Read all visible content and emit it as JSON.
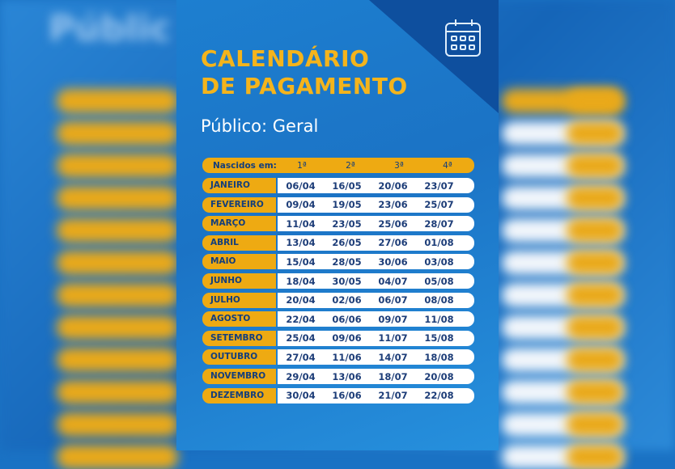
{
  "title_line1": "CALENDÁRIO",
  "title_line2": "DE PAGAMENTO",
  "subtitle": "Público: Geral",
  "background_text": "Públic",
  "header": {
    "label": "Nascidos em:",
    "cols": [
      "1ª",
      "2ª",
      "3ª",
      "4ª"
    ]
  },
  "rows": [
    {
      "month": "JANEIRO",
      "dates": [
        "06/04",
        "16/05",
        "20/06",
        "23/07"
      ]
    },
    {
      "month": "FEVEREIRO",
      "dates": [
        "09/04",
        "19/05",
        "23/06",
        "25/07"
      ]
    },
    {
      "month": "MARÇO",
      "dates": [
        "11/04",
        "23/05",
        "25/06",
        "28/07"
      ]
    },
    {
      "month": "ABRIL",
      "dates": [
        "13/04",
        "26/05",
        "27/06",
        "01/08"
      ]
    },
    {
      "month": "MAIO",
      "dates": [
        "15/04",
        "28/05",
        "30/06",
        "03/08"
      ]
    },
    {
      "month": "JUNHO",
      "dates": [
        "18/04",
        "30/05",
        "04/07",
        "05/08"
      ]
    },
    {
      "month": "JULHO",
      "dates": [
        "20/04",
        "02/06",
        "06/07",
        "08/08"
      ]
    },
    {
      "month": "AGOSTO",
      "dates": [
        "22/04",
        "06/06",
        "09/07",
        "11/08"
      ]
    },
    {
      "month": "SETEMBRO",
      "dates": [
        "25/04",
        "09/06",
        "11/07",
        "15/08"
      ]
    },
    {
      "month": "OUTUBRO",
      "dates": [
        "27/04",
        "11/06",
        "14/07",
        "18/08"
      ]
    },
    {
      "month": "NOVEMBRO",
      "dates": [
        "29/04",
        "13/06",
        "18/07",
        "20/08"
      ]
    },
    {
      "month": "DEZEMBRO",
      "dates": [
        "30/04",
        "16/06",
        "21/07",
        "22/08"
      ]
    }
  ],
  "colors": {
    "accent": "#eeaa12",
    "title": "#f4b41c",
    "blue": "#1b73c5",
    "text": "#1d3d78"
  }
}
